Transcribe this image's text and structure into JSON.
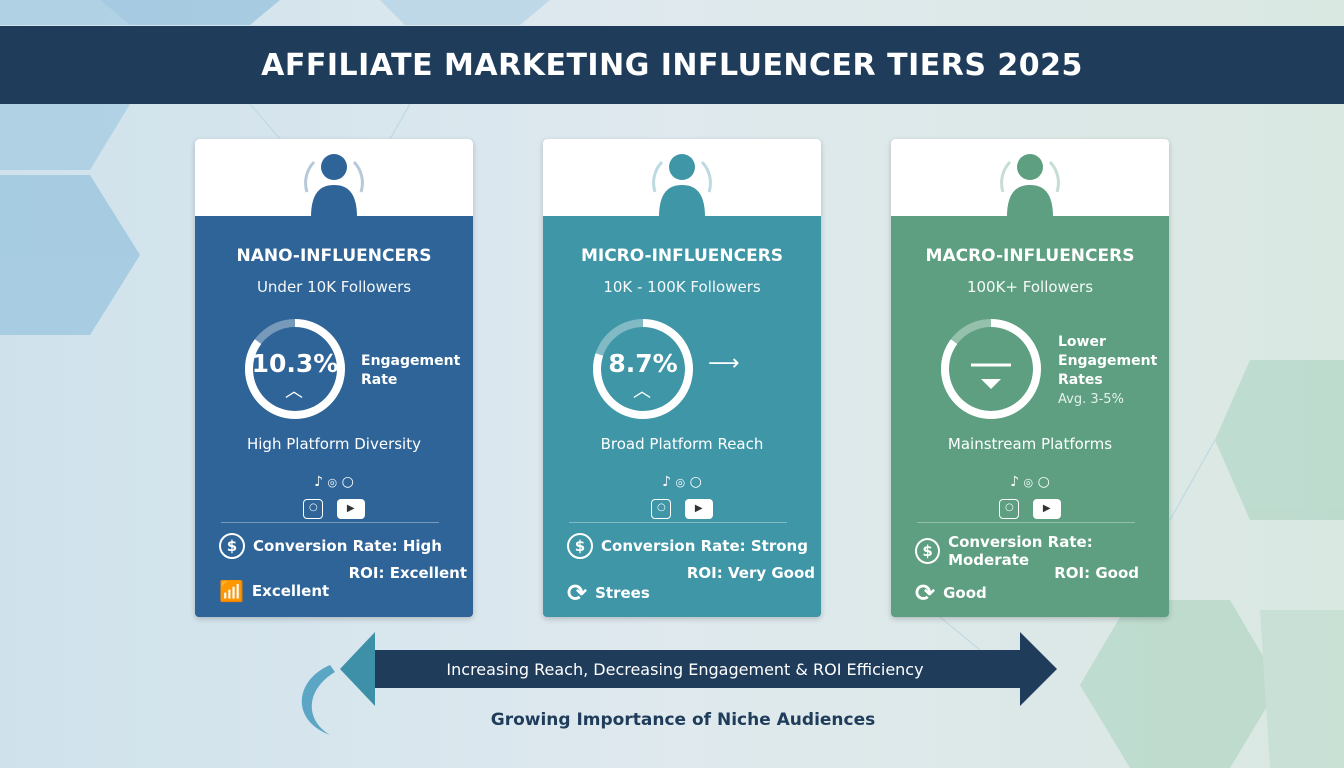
{
  "title": "AFFILIATE MARKETING INFLUENCER TIERS 2025",
  "colors": {
    "header": "#1f3d5a",
    "nano": "#2e6497",
    "micro": "#3e96a7",
    "macro": "#5d9f80"
  },
  "tiers": [
    {
      "name": "NANO-INFLUENCERS",
      "followers": "Under 10K Followers",
      "rate": "10.3%",
      "rate_icon": "chevron-up-icon",
      "rate_label": "Engagement Rate",
      "platforms_label": "High Platform Diversity",
      "conversion": "Conversion Rate: High",
      "roi": "ROI: Excellent",
      "extra": "Excellent",
      "extra_icon": "bar-chart-growth-icon"
    },
    {
      "name": "MICRO-INFLUENCERS",
      "followers": "10K - 100K Followers",
      "rate": "8.7%",
      "rate_icon": "chevron-up-icon",
      "platforms_label": "Broad Platform Reach",
      "conversion": "Conversion Rate: Strong",
      "roi": "ROI: Very Good",
      "extra": "Strees",
      "extra_icon": "refresh-icon"
    },
    {
      "name": "MACRO-INFLUENCERS",
      "followers": "100K+ Followers",
      "rate_label_1": "Lower",
      "rate_label_2": "Engagement",
      "rate_label_3": "Rates",
      "rate_sub": "Avg. 3-5%",
      "platforms_label": "Mainstream Platforms",
      "conversion": "Conversion Rate: Moderate",
      "roi": "ROI: Good",
      "extra": "Good",
      "extra_icon": "refresh-icon"
    }
  ],
  "arrow_text": "Increasing Reach, Decreasing Engagement & ROI Efficiency",
  "bottom_text": "Growing Importance of Niche Audiences"
}
